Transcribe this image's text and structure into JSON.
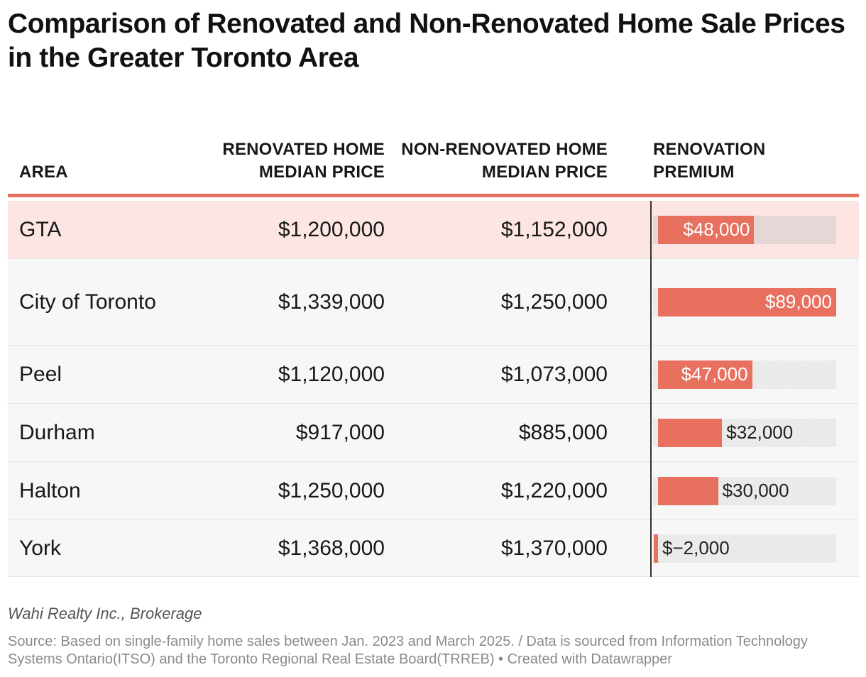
{
  "title": "Comparison of Renovated and Non-Renovated Home Sale Prices in the Greater Toronto Area",
  "columns": {
    "area": "AREA",
    "renovated": "RENOVATED HOME MEDIAN PRICE",
    "non_renovated": "NON-RENOVATED HOME MEDIAN PRICE",
    "premium": "RENOVATION PREMIUM"
  },
  "rows": [
    {
      "area": "GTA",
      "renovated": "$1,200,000",
      "non_renovated": "$1,152,000",
      "premium": 48000,
      "premium_label": "$48,000",
      "highlight": true
    },
    {
      "area": "City of Toronto",
      "renovated": "$1,339,000",
      "non_renovated": "$1,250,000",
      "premium": 89000,
      "premium_label": "$89,000",
      "highlight": false
    },
    {
      "area": "Peel",
      "renovated": "$1,120,000",
      "non_renovated": "$1,073,000",
      "premium": 47000,
      "premium_label": "$47,000",
      "highlight": false
    },
    {
      "area": "Durham",
      "renovated": "$917,000",
      "non_renovated": "$885,000",
      "premium": 32000,
      "premium_label": "$32,000",
      "highlight": false
    },
    {
      "area": "Halton",
      "renovated": "$1,250,000",
      "non_renovated": "$1,220,000",
      "premium": 30000,
      "premium_label": "$30,000",
      "highlight": false
    },
    {
      "area": "York",
      "renovated": "$1,368,000",
      "non_renovated": "$1,370,000",
      "premium": -2000,
      "premium_label": "$−2,000",
      "highlight": false
    }
  ],
  "byline": "Wahi Realty Inc., Brokerage",
  "source": "Source: Based on single-family home sales between Jan. 2023 and March 2025. / Data is sourced from Information Technology Systems Ontario(ITSO) and the Toronto Regional Real Estate Board(TRREB) • Created with Datawrapper",
  "colors": {
    "accent": "#e8705f",
    "highlight_row": "#fce5e3",
    "row_bg": "#f7f7f7",
    "track": "#e6e6e6"
  },
  "chart_data": {
    "type": "table",
    "title": "Comparison of Renovated and Non-Renovated Home Sale Prices in the Greater Toronto Area",
    "columns": [
      "AREA",
      "RENOVATED HOME MEDIAN PRICE",
      "NON-RENOVATED HOME MEDIAN PRICE",
      "RENOVATION PREMIUM"
    ],
    "categories": [
      "GTA",
      "City of Toronto",
      "Peel",
      "Durham",
      "Halton",
      "York"
    ],
    "series": [
      {
        "name": "RENOVATED HOME MEDIAN PRICE",
        "values": [
          1200000,
          1339000,
          1120000,
          917000,
          1250000,
          1368000
        ]
      },
      {
        "name": "NON-RENOVATED HOME MEDIAN PRICE",
        "values": [
          1152000,
          1250000,
          1073000,
          885000,
          1220000,
          1370000
        ]
      },
      {
        "name": "RENOVATION PREMIUM",
        "values": [
          48000,
          89000,
          47000,
          32000,
          30000,
          -2000
        ]
      }
    ],
    "premium_range": [
      -2000,
      89000
    ]
  }
}
